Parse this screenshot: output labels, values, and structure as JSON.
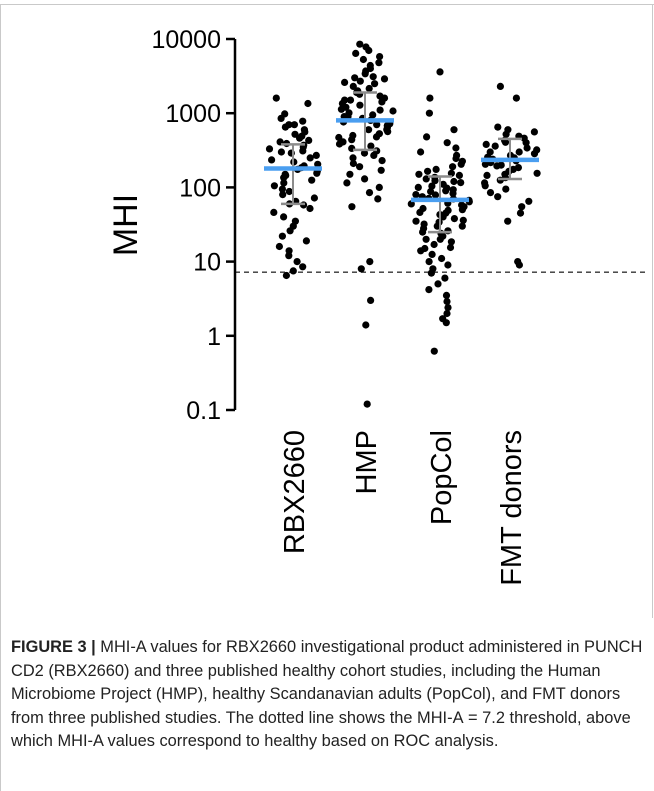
{
  "figure": {
    "caption_label": "FIGURE 3 |",
    "caption_text": " MHI-A values for RBX2660 investigational product administered in PUNCH CD2 (RBX2660) and three published healthy cohort studies, including the Human Microbiome Project (HMP), healthy Scandanavian adults (PopCol), and FMT donors from three published studies. The dotted line shows the MHI-A = 7.2 threshold, above which MHI-A values correspond to healthy based on ROC analysis."
  },
  "chart_data": {
    "type": "scatter",
    "scale": "log",
    "ylabel": "MHI",
    "ylim": [
      0.1,
      10000
    ],
    "yticks": [
      0.1,
      1,
      10,
      100,
      1000,
      10000
    ],
    "ytick_labels": [
      "0.1",
      "1",
      "10",
      "100",
      "1000",
      "10000"
    ],
    "threshold": 7.2,
    "point_color": "#000000",
    "median_color": "#4a9ef0",
    "error_color": "#8c8c8c",
    "categories": [
      "RBX2660",
      "HMP",
      "PopCol",
      "FMT donors"
    ],
    "groups": [
      {
        "name": "RBX2660",
        "median": 180,
        "q1": 60,
        "q3": 380,
        "values": [
          1600,
          1350,
          980,
          850,
          780,
          700,
          650,
          600,
          560,
          520,
          490,
          460,
          430,
          410,
          390,
          370,
          350,
          330,
          310,
          290,
          270,
          250,
          235,
          220,
          205,
          195,
          185,
          175,
          165,
          155,
          145,
          135,
          125,
          115,
          105,
          95,
          88,
          80,
          72,
          65,
          58,
          52,
          46,
          40,
          35,
          30,
          26,
          22,
          19,
          16,
          14,
          12,
          10,
          8.5,
          7.5,
          6.5,
          700,
          300,
          150,
          60
        ]
      },
      {
        "name": "HMP",
        "median": 800,
        "q1": 320,
        "q3": 1900,
        "values": [
          8500,
          7800,
          7000,
          6400,
          5800,
          5300,
          4800,
          4400,
          4000,
          3700,
          3400,
          3100,
          2900,
          2700,
          2500,
          2300,
          2150,
          2000,
          1900,
          1800,
          1700,
          1600,
          1500,
          1420,
          1350,
          1280,
          1200,
          1130,
          1070,
          1010,
          950,
          900,
          850,
          800,
          760,
          720,
          680,
          640,
          600,
          565,
          530,
          500,
          470,
          440,
          410,
          385,
          360,
          335,
          310,
          290,
          270,
          250,
          230,
          210,
          190,
          170,
          150,
          130,
          115,
          100,
          85,
          70,
          55,
          10,
          8,
          3,
          1.4,
          0.12,
          3000,
          1500,
          900,
          600,
          2600,
          1100,
          700,
          480
        ]
      },
      {
        "name": "PopCol",
        "median": 68,
        "q1": 25,
        "q3": 140,
        "values": [
          3600,
          1600,
          1000,
          600,
          480,
          400,
          340,
          300,
          270,
          245,
          225,
          205,
          190,
          175,
          165,
          155,
          145,
          137,
          130,
          123,
          116,
          110,
          104,
          98,
          93,
          88,
          83,
          79,
          75,
          71,
          67,
          64,
          61,
          58,
          55,
          52,
          49,
          46,
          43,
          40,
          38,
          36,
          34,
          32,
          30,
          28,
          26,
          24,
          22,
          20,
          18.5,
          17,
          15.5,
          14,
          12.5,
          11,
          10,
          9,
          8,
          7,
          6,
          5,
          4.2,
          3.5,
          2.9,
          2.4,
          2,
          1.7,
          1.5,
          0.62,
          120,
          90,
          70,
          50,
          35,
          25,
          150,
          100,
          80,
          60,
          45,
          30,
          20,
          15
        ]
      },
      {
        "name": "FMT donors",
        "median": 235,
        "q1": 130,
        "q3": 450,
        "values": [
          2300,
          1600,
          650,
          600,
          560,
          520,
          490,
          460,
          430,
          405,
          380,
          360,
          340,
          320,
          300,
          285,
          270,
          255,
          240,
          228,
          216,
          205,
          195,
          185,
          175,
          165,
          155,
          145,
          135,
          125,
          115,
          105,
          95,
          85,
          75,
          65,
          55,
          45,
          35,
          10,
          9,
          400,
          300,
          250,
          200,
          150
        ]
      }
    ]
  }
}
